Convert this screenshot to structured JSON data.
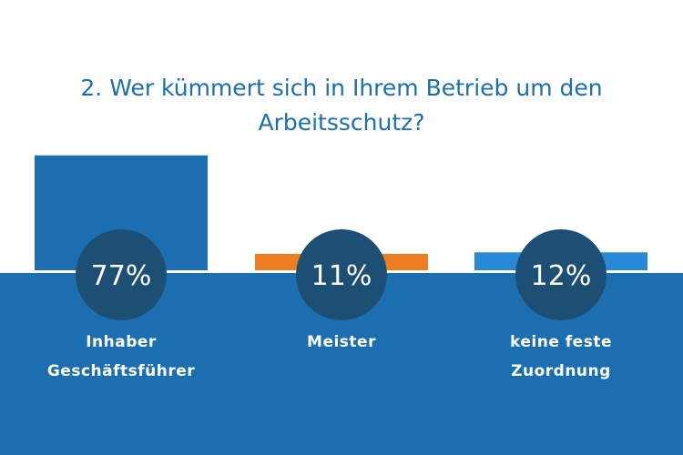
{
  "title_lines": [
    "2. Wer kümmert sich in Ihrem Betrieb um den",
    "Arbeitsschutz?"
  ],
  "colors": {
    "title": "#1a6faf",
    "band": "#1b6fb1",
    "circle": "#1d4f74",
    "bar_inhaber": "#1b6fb1",
    "bar_meister": "#ef7d22",
    "bar_keine": "#2a89d6",
    "label_text": "#ffffff",
    "background": "#ffffff"
  },
  "chart_data": {
    "type": "bar",
    "title": "2. Wer kümmert sich in Ihrem Betrieb um den Arbeitsschutz?",
    "unit": "%",
    "ylim": [
      0,
      100
    ],
    "grid": false,
    "legend": "none",
    "categories": [
      [
        "Inhaber",
        "Geschäftsführer"
      ],
      [
        "Meister"
      ],
      [
        "keine feste",
        "Zuordnung"
      ]
    ],
    "values": [
      77,
      11,
      12
    ],
    "value_labels": [
      "77%",
      "11%",
      "12%"
    ]
  }
}
